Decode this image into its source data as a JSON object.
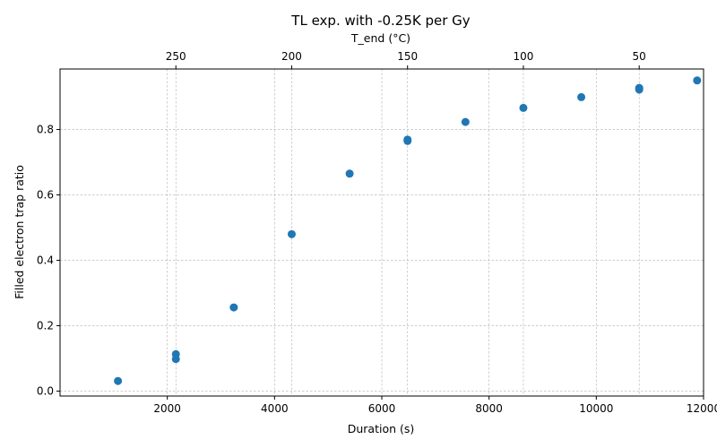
{
  "chart_data": {
    "type": "scatter",
    "title": "TL exp. with -0.25K per Gy",
    "xlabel": "Duration (s)",
    "ylabel": "Filled electron trap ratio",
    "top_xlabel": "T_end (°C)",
    "xlim": [
      0,
      12000
    ],
    "ylim": [
      -0.015,
      0.985
    ],
    "xticks": [
      2000,
      4000,
      6000,
      8000,
      10000,
      12000
    ],
    "xtick_labels": [
      "2000",
      "4000",
      "6000",
      "8000",
      "10000",
      "12000"
    ],
    "yticks": [
      0.0,
      0.2,
      0.4,
      0.6,
      0.8
    ],
    "ytick_labels": [
      "0.0",
      "0.2",
      "0.4",
      "0.6",
      "0.8"
    ],
    "top_ticks_duration": [
      2160,
      4320,
      6480,
      8640,
      10800
    ],
    "top_tick_labels": [
      "250",
      "200",
      "150",
      "100",
      "50"
    ],
    "grid": true,
    "marker_color": "#1f77b4",
    "points": [
      {
        "x": 1080,
        "y": 0.031
      },
      {
        "x": 2160,
        "y": 0.098
      },
      {
        "x": 2160,
        "y": 0.113
      },
      {
        "x": 3240,
        "y": 0.256
      },
      {
        "x": 4320,
        "y": 0.48
      },
      {
        "x": 5400,
        "y": 0.665
      },
      {
        "x": 6480,
        "y": 0.765
      },
      {
        "x": 6480,
        "y": 0.769
      },
      {
        "x": 7560,
        "y": 0.823
      },
      {
        "x": 8640,
        "y": 0.866
      },
      {
        "x": 9720,
        "y": 0.899
      },
      {
        "x": 10800,
        "y": 0.922
      },
      {
        "x": 10800,
        "y": 0.927
      },
      {
        "x": 11880,
        "y": 0.95
      }
    ]
  }
}
